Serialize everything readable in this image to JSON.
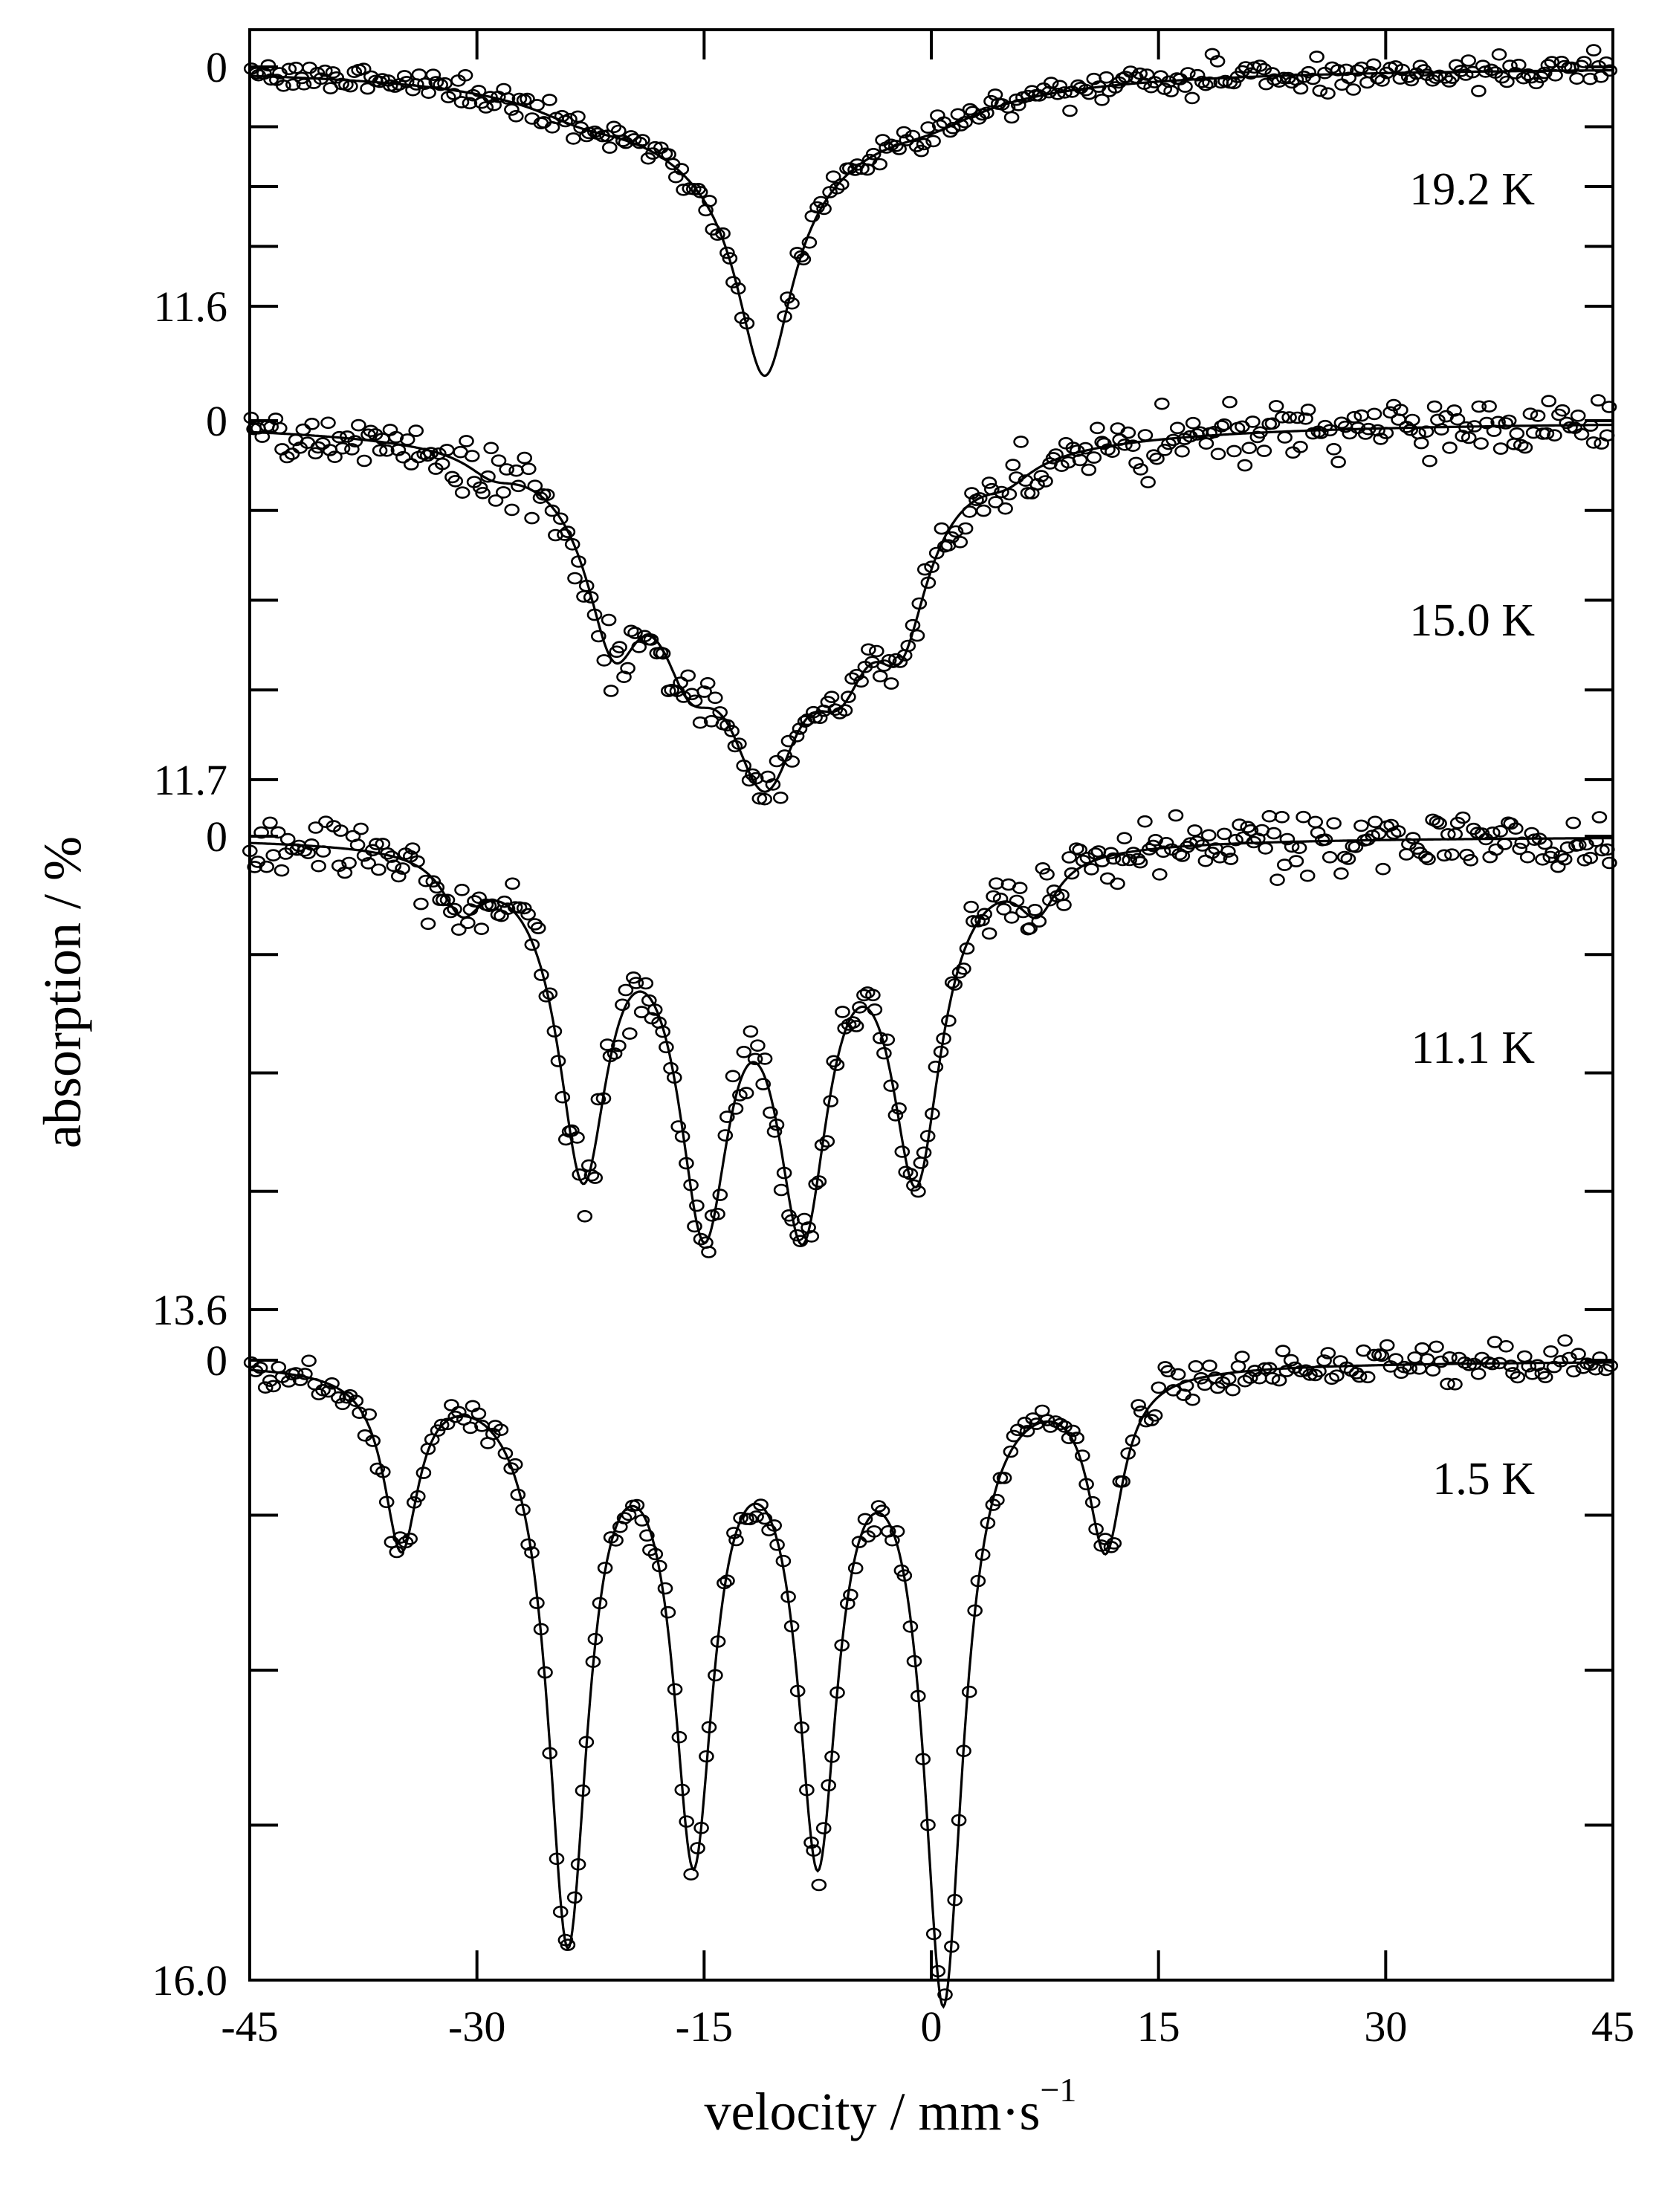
{
  "chart_data": {
    "type": "scatter",
    "xlabel": "velocity / mm·s",
    "xlabel_sup": "−1",
    "ylabel": "absorption / %",
    "xlim": [
      -45,
      45
    ],
    "xticks": [
      "-45",
      "-30",
      "-15",
      "0",
      "15",
      "30",
      "45"
    ],
    "xtick_values": [
      -45,
      -30,
      -15,
      0,
      15,
      30,
      45
    ],
    "grid": false,
    "marker": "open-circle",
    "fit_line": true,
    "panels": [
      {
        "name": "19.2 K",
        "label": "19.2 K",
        "ymin_label": "0",
        "ymax_label": "11.6",
        "ylim": [
          0,
          11.6
        ],
        "fit": {
          "lines": [
            {
              "center": -11,
              "depth": 10.3,
              "width": 2.2
            },
            {
              "center": -11,
              "depth": 4.5,
              "width": 10
            },
            {
              "center": -23,
              "depth": 0.8,
              "width": 4
            },
            {
              "center": 0,
              "depth": 0.8,
              "width": 4
            }
          ]
        }
      },
      {
        "name": "15.0 K",
        "label": "15.0 K",
        "ymin_label": "0",
        "ymax_label": "11.7",
        "ylim": [
          0,
          11.7
        ],
        "fit": {
          "lines": [
            {
              "center": -21,
              "depth": 5.0,
              "width": 2.2
            },
            {
              "center": -16,
              "depth": 4.0,
              "width": 2.5
            },
            {
              "center": -11,
              "depth": 8.0,
              "width": 3.2
            },
            {
              "center": -6,
              "depth": 4.0,
              "width": 2.5
            },
            {
              "center": -2,
              "depth": 4.4,
              "width": 2.2
            },
            {
              "center": -11,
              "depth": 2.0,
              "width": 11
            },
            {
              "center": -29,
              "depth": 0.6,
              "width": 2
            },
            {
              "center": 5,
              "depth": 0.6,
              "width": 2
            }
          ]
        }
      },
      {
        "name": "11.1 K",
        "label": "11.1 K",
        "ymin_label": "0",
        "ymax_label": "13.6",
        "ylim": [
          0,
          13.6
        ],
        "fit": {
          "lines": [
            {
              "center": -31,
              "depth": 1.5,
              "width": 1.6
            },
            {
              "center": -23,
              "depth": 9.0,
              "width": 2.0
            },
            {
              "center": -15,
              "depth": 10.0,
              "width": 2.1
            },
            {
              "center": -8.5,
              "depth": 10.0,
              "width": 2.1
            },
            {
              "center": -1,
              "depth": 9.0,
              "width": 2.0
            },
            {
              "center": 7,
              "depth": 1.5,
              "width": 1.6
            }
          ]
        }
      },
      {
        "name": "1.5 K",
        "label": "1.5 K",
        "ymin_label": "0",
        "ymax_label": "16.0",
        "ylim": [
          0,
          16.0
        ],
        "fit": {
          "lines": [
            {
              "center": -35,
              "depth": 4.5,
              "width": 1.4
            },
            {
              "center": -24,
              "depth": 14.5,
              "width": 1.6
            },
            {
              "center": -15.7,
              "depth": 12.0,
              "width": 1.6
            },
            {
              "center": -7.5,
              "depth": 12.0,
              "width": 1.6
            },
            {
              "center": 0.8,
              "depth": 16.0,
              "width": 1.6
            },
            {
              "center": 11.5,
              "depth": 4.5,
              "width": 1.4
            }
          ]
        }
      }
    ]
  }
}
